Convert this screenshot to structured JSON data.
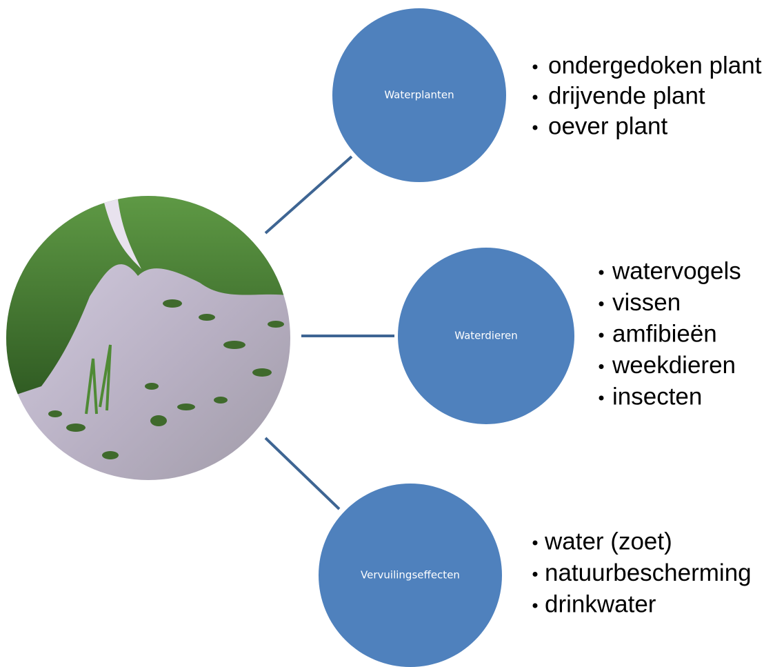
{
  "nodes": [
    {
      "label": "Waterplanten",
      "items": [
        "ondergedoken plant",
        "drijvende plant",
        "oever plant"
      ]
    },
    {
      "label": "Waterdieren",
      "items": [
        "watervogels",
        "vissen",
        "amfibieën",
        "weekdieren",
        "insecten"
      ]
    },
    {
      "label": "Vervuilingseffecten",
      "items": [
        "water (zoet)",
        "natuurbescherming",
        "drinkwater"
      ]
    }
  ]
}
